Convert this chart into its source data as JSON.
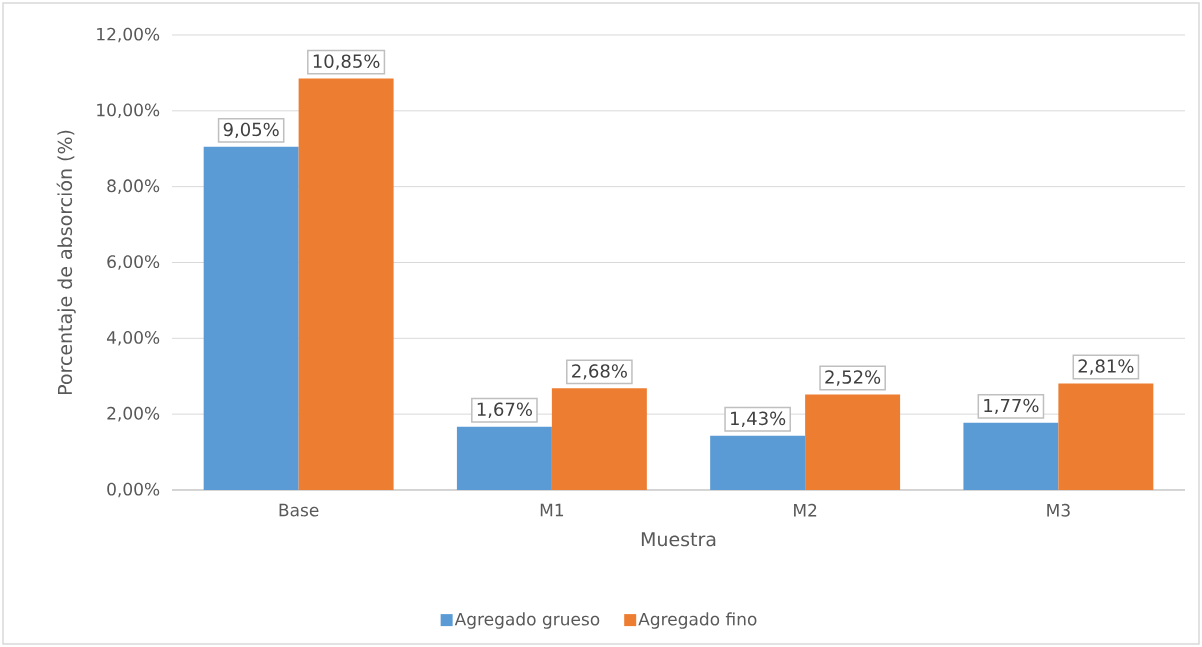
{
  "chart_data": {
    "type": "bar",
    "xlabel": "Muestra",
    "ylabel": "Porcentaje de absorción (%)",
    "categories": [
      "Base",
      "M1",
      "M2",
      "M3"
    ],
    "series": [
      {
        "name": "Agregado grueso",
        "color": "#5b9bd5",
        "values": [
          9.05,
          1.67,
          1.43,
          1.77
        ],
        "value_labels": [
          "9,05%",
          "1,67%",
          "1,43%",
          "1,77%"
        ]
      },
      {
        "name": "Agregado fino",
        "color": "#ed7d31",
        "values": [
          10.85,
          2.68,
          2.52,
          2.81
        ],
        "value_labels": [
          "10,85%",
          "2,68%",
          "2,52%",
          "2,81%"
        ]
      }
    ],
    "ylim": [
      0,
      12
    ],
    "yticks": [
      {
        "value": 0,
        "label": "0,00%"
      },
      {
        "value": 2,
        "label": "2,00%"
      },
      {
        "value": 4,
        "label": "4,00%"
      },
      {
        "value": 6,
        "label": "6,00%"
      },
      {
        "value": 8,
        "label": "8,00%"
      },
      {
        "value": 10,
        "label": "10,00%"
      },
      {
        "value": 12,
        "label": "12,00%"
      }
    ],
    "grid": "y",
    "legend": "bottom"
  }
}
